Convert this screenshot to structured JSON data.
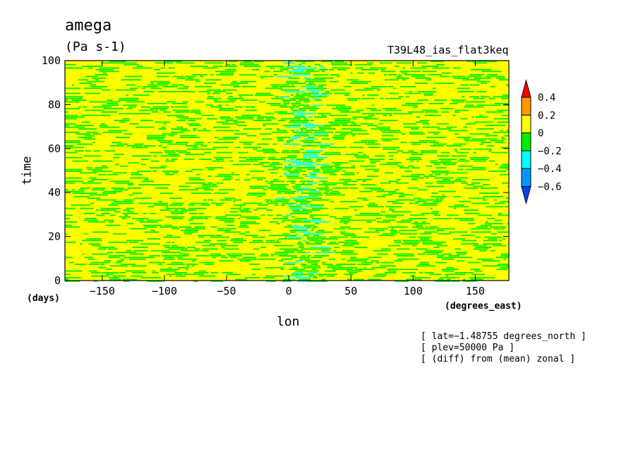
{
  "chart_data": {
    "type": "heatmap",
    "title": "amega",
    "units": "(Pa s-1)",
    "run_label": "T39L48_ias_flat3keq",
    "xlabel": "lon",
    "ylabel": "time",
    "x_unit_label": "(degrees_east)",
    "y_unit_label": "(days)",
    "xlim": [
      -180,
      177
    ],
    "ylim": [
      0,
      100
    ],
    "x_ticks": [
      -150,
      -100,
      -50,
      0,
      50,
      100,
      150
    ],
    "x_tick_labels": [
      "−150",
      "−100",
      "−50",
      "0",
      "50",
      "100",
      "150"
    ],
    "y_ticks": [
      0,
      20,
      40,
      60,
      80,
      100
    ],
    "y_tick_labels": [
      "0",
      "20",
      "40",
      "60",
      "80",
      "100"
    ],
    "colorbar": {
      "levels": [
        0.4,
        0.2,
        0,
        -0.2,
        -0.4,
        -0.6
      ],
      "labels": [
        "0.4",
        "0.2",
        "0",
        "−0.2",
        "−0.4",
        "−0.6"
      ],
      "colors": [
        "#ff0000",
        "#ff9900",
        "#ffff00",
        "#00ee00",
        "#00ffff",
        "#0099ff",
        "#0044ff"
      ]
    },
    "annotations": [
      "[ lat=−1.48755 degrees_north ]",
      "[ plev=50000 Pa ]",
      "[ (diff) from (mean) zonal ]"
    ],
    "field_summary": "Banded yellow (0 to 0.2) and green (−0.2 to 0) noise across all longitudes; a persistent column of negative values (green/cyan, down to −0.4) centered near lon 0–15 over all days."
  }
}
